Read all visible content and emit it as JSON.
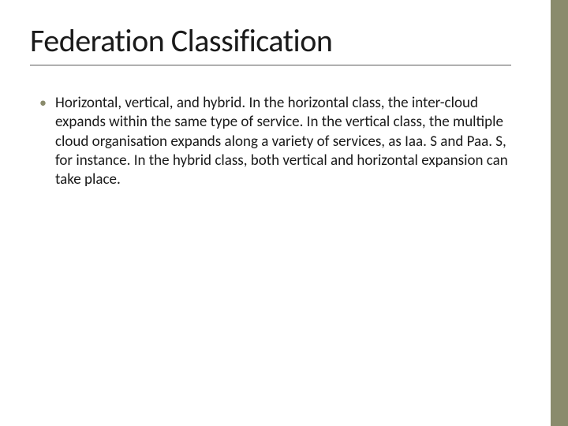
{
  "slide": {
    "title": "Federation Classification",
    "bullets": [
      {
        "text": "Horizontal, vertical, and hybrid. In the horizontal class, the inter-cloud expands within the same type of service. In the vertical class, the multiple cloud organisation expands along a variety of services, as Iaa. S and Paa. S, for instance. In the hybrid class, both vertical and horizontal expansion can take place."
      }
    ]
  },
  "style": {
    "accent_color": "#8a8b6c",
    "background_color": "#ffffff",
    "title_color": "#1a1a1a",
    "body_color": "#1a1a1a",
    "title_fontsize": 40,
    "body_fontsize": 19,
    "underline_color": "#5a5a5a",
    "accent_bar_width": 22
  }
}
